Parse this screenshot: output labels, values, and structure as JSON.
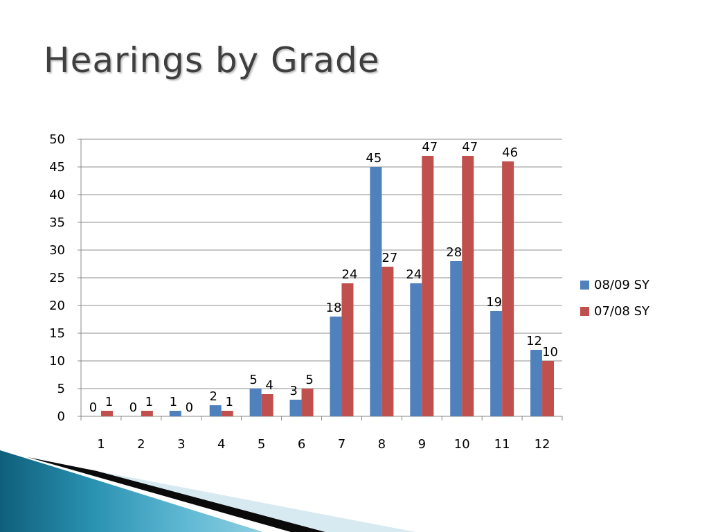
{
  "slide": {
    "title": "Hearings by Grade"
  },
  "chart_data": {
    "type": "bar",
    "title": "",
    "xlabel": "",
    "ylabel": "",
    "ylim": [
      0,
      50
    ],
    "yticks": [
      0,
      5,
      10,
      15,
      20,
      25,
      30,
      35,
      40,
      45,
      50
    ],
    "categories": [
      "1",
      "2",
      "3",
      "4",
      "5",
      "6",
      "7",
      "8",
      "9",
      "10",
      "11",
      "12"
    ],
    "grid": true,
    "legend_position": "right",
    "series": [
      {
        "name": "08/09 SY",
        "color": "#4f81bd",
        "values": [
          0,
          0,
          1,
          2,
          5,
          3,
          18,
          45,
          24,
          28,
          19,
          12
        ]
      },
      {
        "name": "07/08 SY",
        "color": "#c0504d",
        "values": [
          1,
          1,
          0,
          1,
          4,
          5,
          24,
          27,
          47,
          47,
          46,
          10
        ]
      }
    ]
  }
}
